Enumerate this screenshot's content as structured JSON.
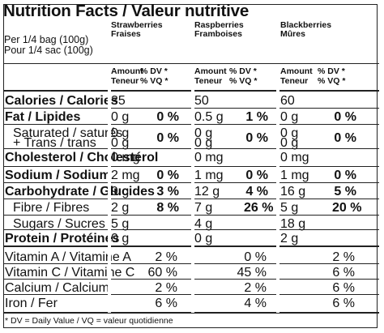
{
  "title": "Nutrition Facts / Valeur nutritive",
  "serving": [
    "Per 1/4 bag (100g)",
    "Pour 1/4 sac (100g)"
  ],
  "products": [
    {
      "en": "Strawberries",
      "fr": "Fraises"
    },
    {
      "en": "Raspberries",
      "fr": "Framboises"
    },
    {
      "en": "Blackberries",
      "fr": "Mûres"
    }
  ],
  "column_units": {
    "amount": "Amount",
    "teneur": "Teneur",
    "dv": "% DV *",
    "vq": "% VQ *"
  },
  "rows": [
    {
      "name": "Calories / Calories",
      "bold": true,
      "values": [
        {
          "a": "35",
          "d": ""
        },
        {
          "a": "50",
          "d": ""
        },
        {
          "a": "60",
          "d": ""
        }
      ]
    },
    {
      "name": "Fat / Lipides",
      "bold": true,
      "values": [
        {
          "a": "0 g",
          "d": "0 %"
        },
        {
          "a": "0.5 g",
          "d": "1 %"
        },
        {
          "a": "0 g",
          "d": "0 %"
        }
      ]
    },
    {
      "name": "Saturated / saturés",
      "name2": "+ Trans / trans",
      "bold": false,
      "indent": true,
      "values": [
        {
          "a": "0 g",
          "a2": "0 g",
          "d": "0 %"
        },
        {
          "a": "0 g",
          "a2": "0 g",
          "d": "0 %"
        },
        {
          "a": "0 g",
          "a2": "0 g",
          "d": "0 %"
        }
      ]
    },
    {
      "name": "Cholesterol / Cholestérol",
      "bold": true,
      "values": [
        {
          "a": "0 mg",
          "d": ""
        },
        {
          "a": "0 mg",
          "d": ""
        },
        {
          "a": "0 mg",
          "d": ""
        }
      ]
    },
    {
      "name": "Sodium / Sodium",
      "bold": true,
      "values": [
        {
          "a": "2 mg",
          "d": "0 %"
        },
        {
          "a": "1 mg",
          "d": "0 %"
        },
        {
          "a": "1 mg",
          "d": "0 %"
        }
      ]
    },
    {
      "name": "Carbohydrate / Glucides",
      "bold": true,
      "values": [
        {
          "a": "9 g",
          "d": "3 %"
        },
        {
          "a": "12 g",
          "d": "4 %"
        },
        {
          "a": "16 g",
          "d": "5 %"
        }
      ]
    },
    {
      "name": "Fibre / Fibres",
      "bold": false,
      "indent": true,
      "values": [
        {
          "a": "2 g",
          "d": "8 %"
        },
        {
          "a": "7 g",
          "d": "26 %"
        },
        {
          "a": "5 g",
          "d": "20 %"
        }
      ]
    },
    {
      "name": "Sugars / Sucres",
      "bold": false,
      "indent": true,
      "values": [
        {
          "a": "5 g",
          "d": ""
        },
        {
          "a": "4 g",
          "d": ""
        },
        {
          "a": "18 g",
          "d": ""
        }
      ]
    },
    {
      "name": "Protein / Protéines",
      "bold": true,
      "values": [
        {
          "a": "0 g",
          "d": ""
        },
        {
          "a": "0 g",
          "d": ""
        },
        {
          "a": "2 g",
          "d": ""
        }
      ]
    }
  ],
  "vitamins": [
    {
      "name": "Vitamin A / Vitamine A",
      "values": [
        "2 %",
        "0 %",
        "2 %"
      ]
    },
    {
      "name": "Vitamin C / Vitamine C",
      "values": [
        "60 %",
        "45 %",
        "6 %"
      ]
    },
    {
      "name": "Calcium / Calcium",
      "values": [
        "2 %",
        "2 %",
        "6 %"
      ]
    },
    {
      "name": "Iron / Fer",
      "values": [
        "6 %",
        "4 %",
        "6 %"
      ]
    }
  ],
  "footnote": "* DV = Daily Value / VQ = valeur quotidienne"
}
